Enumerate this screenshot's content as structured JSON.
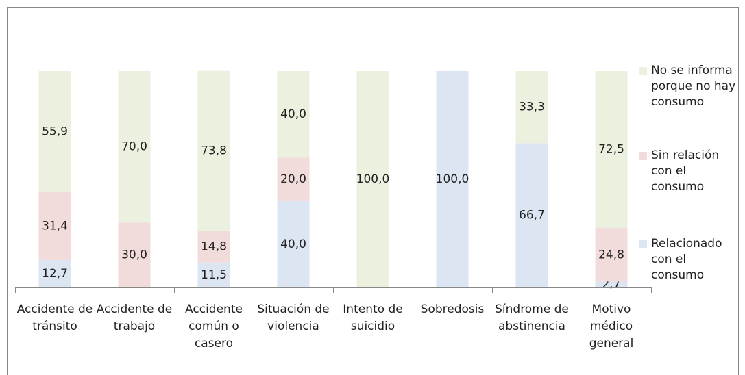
{
  "chart_data": {
    "type": "bar",
    "stacked": true,
    "categories": [
      "Accidente de tránsito",
      "Accidente de trabajo",
      "Accidente común o casero",
      "Situación de violencia",
      "Intento de suicidio",
      "Sobredosis",
      "Síndrome de abstinencia",
      "Motivo médico general"
    ],
    "series": [
      {
        "name": "Relacionado con el consumo",
        "color": "#dce6f2",
        "values": [
          12.7,
          0,
          11.5,
          40.0,
          0,
          100.0,
          66.7,
          2.7
        ],
        "value_labels": [
          "12,7",
          null,
          "11,5",
          "40,0",
          null,
          "100,0",
          "66,7",
          "2,7"
        ]
      },
      {
        "name": "Sin relación con el consumo",
        "color": "#f2dcdb",
        "values": [
          31.4,
          30.0,
          14.8,
          20.0,
          0,
          0,
          0,
          24.8
        ],
        "value_labels": [
          "31,4",
          "30,0",
          "14,8",
          "20,0",
          null,
          null,
          null,
          "24,8"
        ]
      },
      {
        "name": "No se informa porque no hay consumo",
        "color": "#ebf1de",
        "values": [
          55.9,
          70.0,
          73.8,
          40.0,
          100.0,
          0,
          33.3,
          72.5
        ],
        "value_labels": [
          "55,9",
          "70,0",
          "73,8",
          "40,0",
          "100,0",
          null,
          "33,3",
          "72,5"
        ]
      }
    ],
    "ylim": [
      0,
      100
    ]
  }
}
